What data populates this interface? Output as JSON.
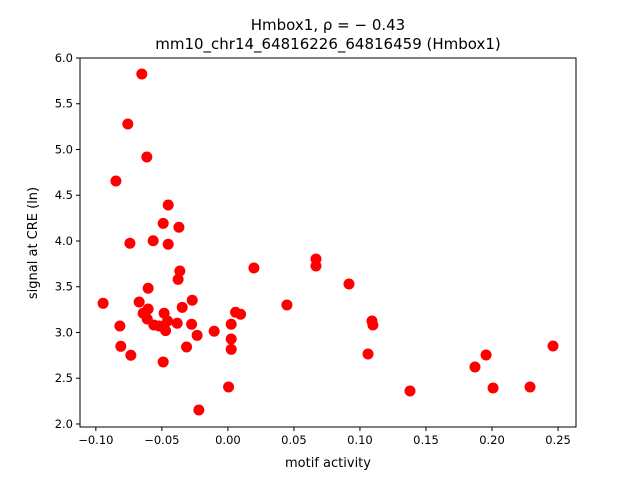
{
  "chart_data": {
    "type": "scatter",
    "title_line1": "Hmbox1, ρ = − 0.43",
    "title_line2": "mm10_chr14_64816226_64816459 (Hmbox1)",
    "xlabel": "motif activity",
    "ylabel": "signal at CRE (ln)",
    "xlim": [
      -0.112,
      0.2636
    ],
    "ylim": [
      1.967,
      6.0
    ],
    "xticks": [
      -0.1,
      -0.05,
      0.0,
      0.05,
      0.1,
      0.15,
      0.2,
      0.25
    ],
    "xtick_labels": [
      "−0.10",
      "−0.05",
      "0.00",
      "0.05",
      "0.10",
      "0.15",
      "0.20",
      "0.25"
    ],
    "yticks": [
      2.0,
      2.5,
      3.0,
      3.5,
      4.0,
      4.5,
      5.0,
      5.5,
      6.0
    ],
    "ytick_labels": [
      "2.0",
      "2.5",
      "3.0",
      "3.5",
      "4.0",
      "4.5",
      "5.0",
      "5.5",
      "6.0"
    ],
    "grid": false,
    "color": "#ff0000",
    "points": [
      [
        -0.0652,
        5.825
      ],
      [
        -0.0758,
        5.279
      ],
      [
        -0.0614,
        4.918
      ],
      [
        -0.0848,
        4.656
      ],
      [
        -0.0452,
        4.393
      ],
      [
        -0.049,
        4.193
      ],
      [
        -0.0371,
        4.15
      ],
      [
        -0.0742,
        3.975
      ],
      [
        -0.0566,
        4.003
      ],
      [
        -0.0452,
        3.964
      ],
      [
        -0.0364,
        3.672
      ],
      [
        -0.0377,
        3.581
      ],
      [
        -0.0604,
        3.483
      ],
      [
        -0.0945,
        3.319
      ],
      [
        -0.0672,
        3.333
      ],
      [
        -0.027,
        3.352
      ],
      [
        -0.0346,
        3.275
      ],
      [
        -0.0604,
        3.257
      ],
      [
        -0.0642,
        3.21
      ],
      [
        -0.0483,
        3.21
      ],
      [
        -0.0611,
        3.148
      ],
      [
        -0.0457,
        3.126
      ],
      [
        -0.0384,
        3.101
      ],
      [
        -0.0275,
        3.09
      ],
      [
        -0.0818,
        3.071
      ],
      [
        -0.0561,
        3.082
      ],
      [
        -0.052,
        3.071
      ],
      [
        -0.0472,
        3.02
      ],
      [
        -0.0104,
        3.013
      ],
      [
        -0.0233,
        2.969
      ],
      [
        0.0025,
        3.09
      ],
      [
        0.0058,
        3.221
      ],
      [
        0.0096,
        3.199
      ],
      [
        0.0025,
        2.929
      ],
      [
        0.0025,
        2.816
      ],
      [
        -0.0811,
        2.849
      ],
      [
        -0.0313,
        2.842
      ],
      [
        -0.0735,
        2.751
      ],
      [
        -0.049,
        2.678
      ],
      [
        0.0005,
        2.404
      ],
      [
        -0.022,
        2.153
      ],
      [
        0.0197,
        3.705
      ],
      [
        0.0447,
        3.301
      ],
      [
        0.0667,
        3.803
      ],
      [
        0.0667,
        3.727
      ],
      [
        0.0917,
        3.53
      ],
      [
        0.1091,
        3.126
      ],
      [
        0.1098,
        3.082
      ],
      [
        0.1061,
        2.765
      ],
      [
        0.1379,
        2.361
      ],
      [
        0.1871,
        2.623
      ],
      [
        0.1955,
        2.754
      ],
      [
        0.2008,
        2.393
      ],
      [
        0.2462,
        2.852
      ],
      [
        0.2288,
        2.404
      ]
    ]
  }
}
